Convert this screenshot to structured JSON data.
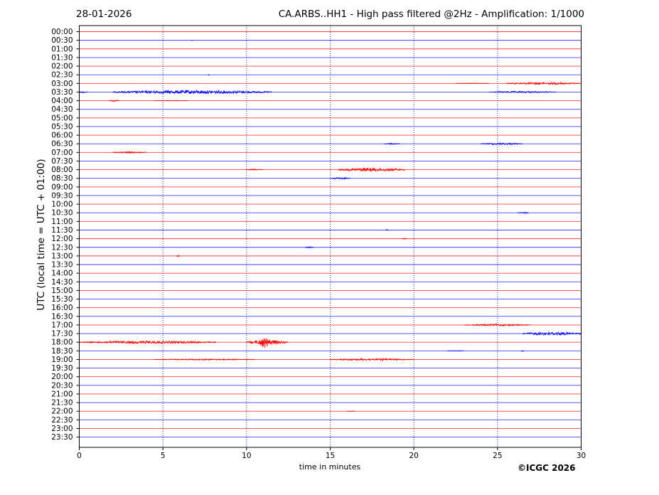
{
  "header": {
    "date": "28-01-2026",
    "title": "CA.ARBS..HH1 - High pass filtered @2Hz - Amplification: 1/1000"
  },
  "credit": "©ICGC 2026",
  "colors": {
    "red": "#ff0000",
    "blue": "#0000ff",
    "grid": "#000080"
  },
  "chart_data": {
    "type": "line",
    "title": "CA.ARBS..HH1 - High pass filtered @2Hz - Amplification: 1/1000",
    "xlabel": "time in minutes",
    "ylabel": "UTC (local time = UTC + 01:00)",
    "xlim": [
      0,
      30
    ],
    "xticks": [
      0,
      5,
      10,
      15,
      20,
      25,
      30
    ],
    "rows": [
      "00:00",
      "00:30",
      "01:00",
      "01:30",
      "02:00",
      "02:30",
      "03:00",
      "03:30",
      "04:00",
      "04:30",
      "05:00",
      "05:30",
      "06:00",
      "06:30",
      "07:00",
      "07:30",
      "08:00",
      "08:30",
      "09:00",
      "09:30",
      "10:00",
      "10:30",
      "11:00",
      "11:30",
      "12:00",
      "12:30",
      "13:00",
      "13:30",
      "14:00",
      "14:30",
      "15:00",
      "15:30",
      "16:00",
      "16:30",
      "17:00",
      "17:30",
      "18:00",
      "18:30",
      "19:00",
      "19:30",
      "20:00",
      "20:30",
      "21:00",
      "21:30",
      "22:00",
      "22:30",
      "23:00",
      "23:30"
    ],
    "row_colors": [
      "red",
      "blue",
      "red",
      "blue",
      "red",
      "blue",
      "red",
      "blue",
      "red",
      "blue",
      "red",
      "blue",
      "red",
      "blue",
      "red",
      "blue",
      "red",
      "blue",
      "red",
      "blue",
      "red",
      "blue",
      "red",
      "blue",
      "red",
      "blue",
      "red",
      "blue",
      "red",
      "blue",
      "red",
      "blue",
      "red",
      "blue",
      "red",
      "blue",
      "red",
      "blue",
      "red",
      "blue",
      "red",
      "blue",
      "red",
      "blue",
      "red",
      "blue",
      "red",
      "blue"
    ],
    "grid": "vertical dotted lines at x ticks",
    "events": [
      {
        "row": "00:30",
        "start": 6.7,
        "end": 6.8,
        "amplitude": 0.4
      },
      {
        "row": "02:30",
        "start": 7.7,
        "end": 7.8,
        "amplitude": 0.8
      },
      {
        "row": "03:00",
        "start": 22.5,
        "end": 24.5,
        "amplitude": 0.5
      },
      {
        "row": "03:00",
        "start": 25.5,
        "end": 30.0,
        "amplitude": 1.6
      },
      {
        "row": "03:30",
        "start": 0.0,
        "end": 0.5,
        "amplitude": 1.2
      },
      {
        "row": "03:30",
        "start": 2.0,
        "end": 11.5,
        "amplitude": 2.5
      },
      {
        "row": "03:30",
        "start": 24.5,
        "end": 28.5,
        "amplitude": 1.2
      },
      {
        "row": "04:00",
        "start": 1.8,
        "end": 2.4,
        "amplitude": 1.0
      },
      {
        "row": "04:00",
        "start": 4.5,
        "end": 6.5,
        "amplitude": 0.5
      },
      {
        "row": "06:30",
        "start": 18.2,
        "end": 19.2,
        "amplitude": 1.0
      },
      {
        "row": "06:30",
        "start": 24.0,
        "end": 26.5,
        "amplitude": 1.4
      },
      {
        "row": "07:00",
        "start": 2.0,
        "end": 4.0,
        "amplitude": 1.2
      },
      {
        "row": "08:00",
        "start": 10.0,
        "end": 11.0,
        "amplitude": 0.8
      },
      {
        "row": "08:00",
        "start": 15.5,
        "end": 19.5,
        "amplitude": 2.6
      },
      {
        "row": "08:30",
        "start": 15.0,
        "end": 16.2,
        "amplitude": 1.3
      },
      {
        "row": "10:30",
        "start": 26.2,
        "end": 26.9,
        "amplitude": 0.8
      },
      {
        "row": "11:30",
        "start": 18.3,
        "end": 18.5,
        "amplitude": 0.8
      },
      {
        "row": "12:00",
        "start": 19.3,
        "end": 19.6,
        "amplitude": 0.8
      },
      {
        "row": "12:30",
        "start": 13.5,
        "end": 14.0,
        "amplitude": 1.0
      },
      {
        "row": "13:00",
        "start": 5.8,
        "end": 6.0,
        "amplitude": 1.2
      },
      {
        "row": "17:00",
        "start": 23.0,
        "end": 27.0,
        "amplitude": 1.3
      },
      {
        "row": "17:30",
        "start": 26.5,
        "end": 30.0,
        "amplitude": 2.5
      },
      {
        "row": "18:00",
        "start": 0.0,
        "end": 8.2,
        "amplitude": 2.0
      },
      {
        "row": "18:00",
        "start": 10.0,
        "end": 12.5,
        "amplitude": 3.0
      },
      {
        "row": "18:00",
        "start": 10.7,
        "end": 11.4,
        "amplitude": 8.0
      },
      {
        "row": "18:30",
        "start": 22.0,
        "end": 23.0,
        "amplitude": 0.4
      },
      {
        "row": "18:30",
        "start": 26.4,
        "end": 26.6,
        "amplitude": 0.8
      },
      {
        "row": "19:00",
        "start": 4.5,
        "end": 10.5,
        "amplitude": 1.0
      },
      {
        "row": "19:00",
        "start": 15.0,
        "end": 20.0,
        "amplitude": 1.4
      },
      {
        "row": "22:00",
        "start": 16.0,
        "end": 16.5,
        "amplitude": 0.4
      }
    ]
  }
}
